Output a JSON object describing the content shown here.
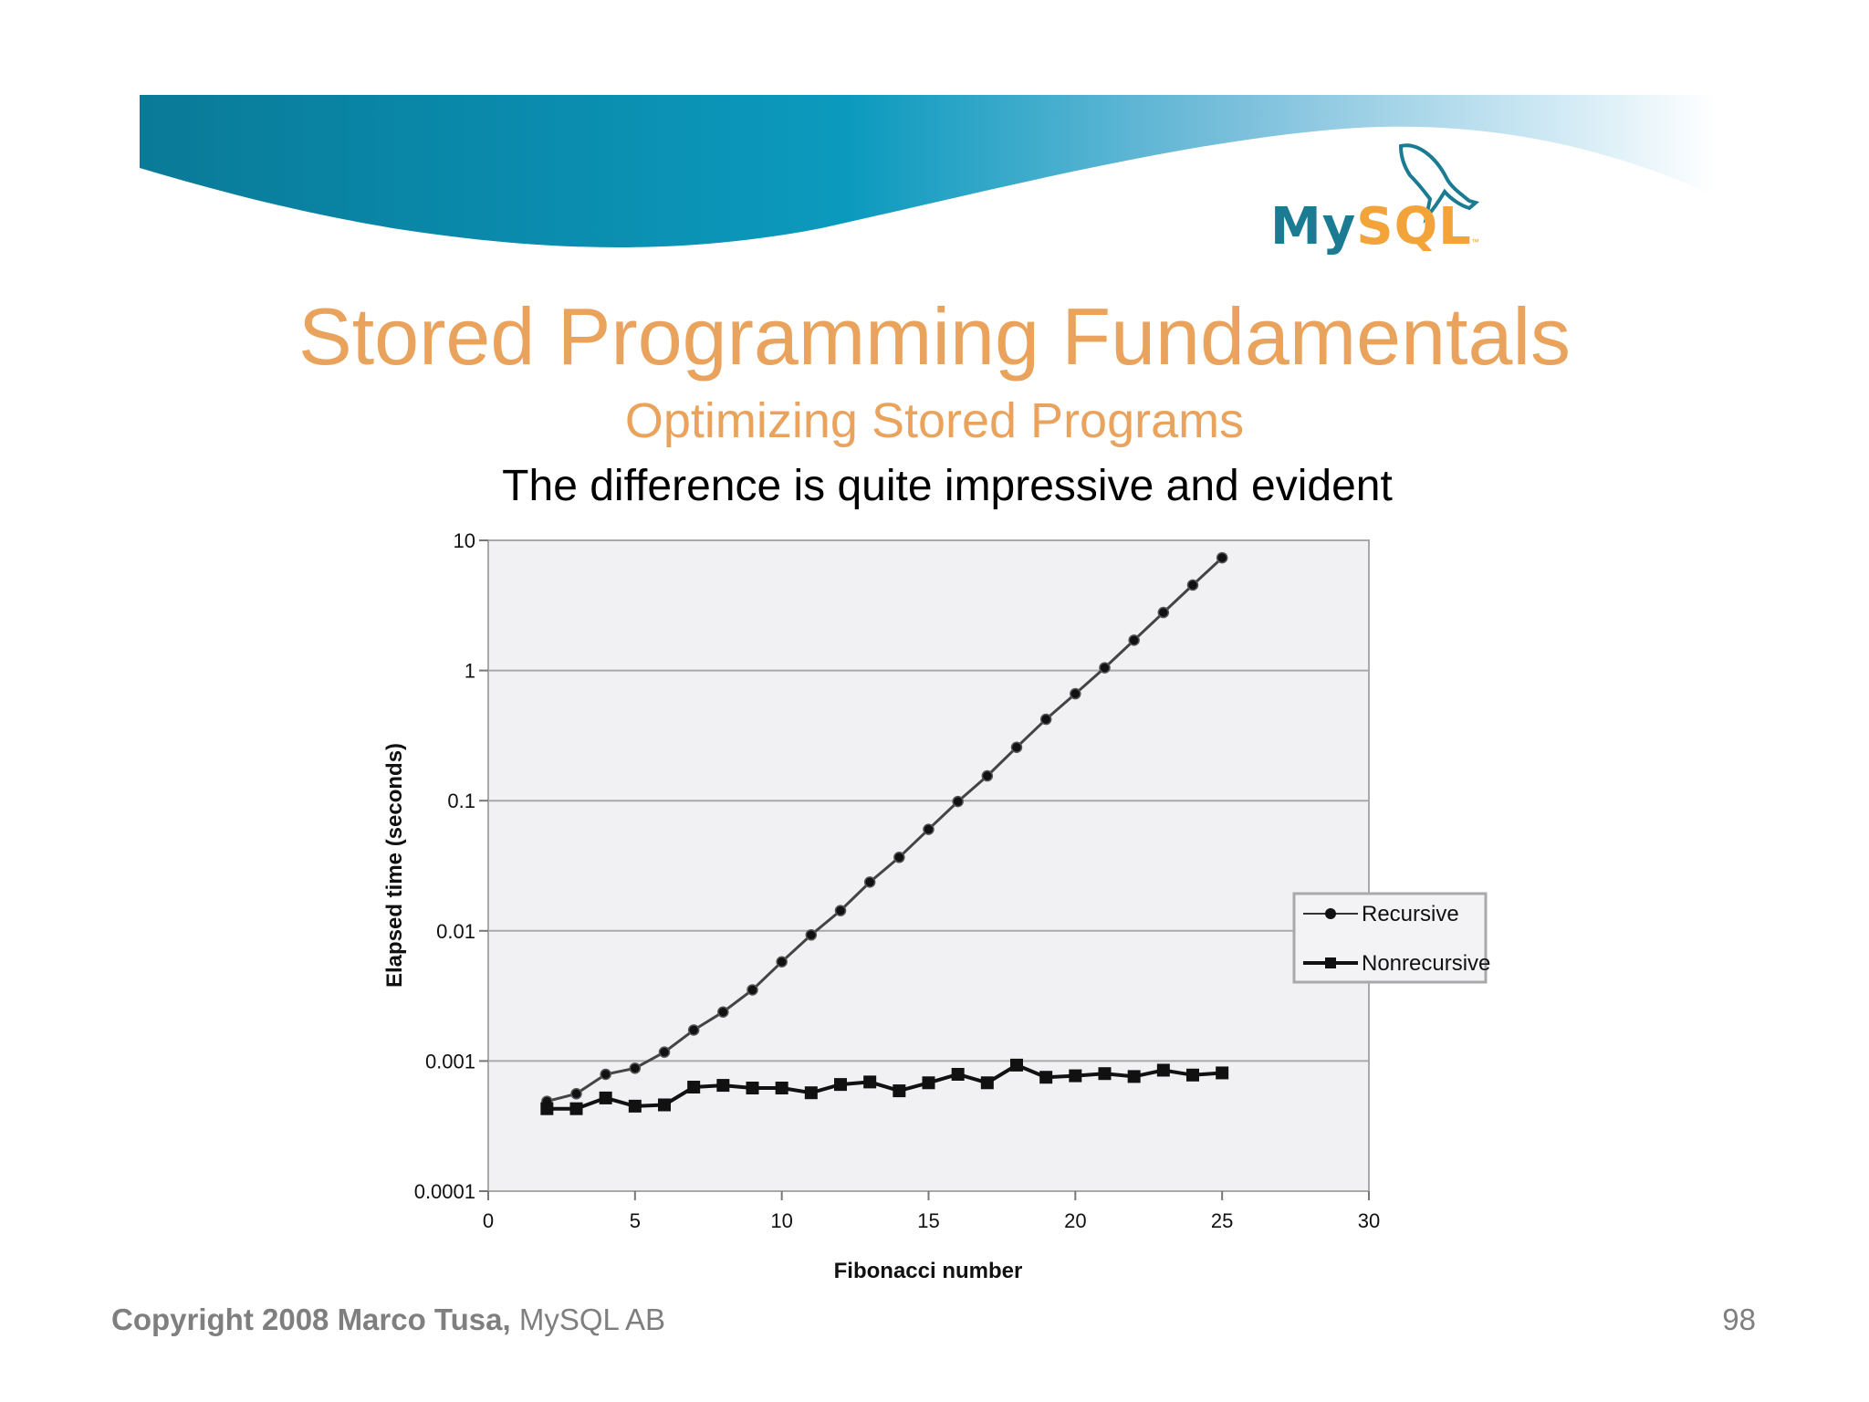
{
  "logo": {
    "text_my": "My",
    "text_sql": "SQL",
    "tm": "™"
  },
  "slide": {
    "title": "Stored Programming Fundamentals",
    "subtitle": "Optimizing Stored Programs",
    "caption": "The difference is quite impressive and evident"
  },
  "footer": {
    "copyright": "Copyright 2008 Marco Tusa,",
    "company": " MySQL AB",
    "page": "98"
  },
  "colors": {
    "title": "#eaa35c",
    "banner_dark": "#0a7a98",
    "banner_light": "#d9eef7",
    "plot_bg": "#f1f0f3",
    "series": "#111111"
  },
  "chart_data": {
    "type": "line",
    "xlabel": "Fibonacci number",
    "ylabel": "Elapsed time (seconds)",
    "xlim": [
      0,
      30
    ],
    "ylim": [
      0.0001,
      10
    ],
    "yscale": "log",
    "grid": true,
    "legend": "right",
    "x_ticks": [
      "0",
      "5",
      "10",
      "15",
      "20",
      "25",
      "30"
    ],
    "y_ticks": [
      "10",
      "1",
      "0.1",
      "0.01",
      "0.001",
      "0.0001"
    ],
    "x": [
      2,
      3,
      4,
      5,
      6,
      7,
      8,
      9,
      10,
      11,
      12,
      13,
      14,
      15,
      16,
      17,
      18,
      19,
      20,
      21,
      22,
      23,
      24,
      25
    ],
    "series": [
      {
        "name": "Recursive",
        "marker": "circle",
        "values": [
          0.00049,
          0.00056,
          0.00079,
          0.00088,
          0.00117,
          0.00173,
          0.00238,
          0.00352,
          0.00578,
          0.0093,
          0.0143,
          0.0237,
          0.0367,
          0.0602,
          0.0985,
          0.155,
          0.257,
          0.422,
          0.663,
          1.05,
          1.71,
          2.79,
          4.54,
          7.35
        ]
      },
      {
        "name": "Nonrecursive",
        "marker": "square",
        "values": [
          0.00043,
          0.00043,
          0.00052,
          0.00045,
          0.00046,
          0.00063,
          0.00065,
          0.00062,
          0.00062,
          0.00057,
          0.00066,
          0.00069,
          0.00059,
          0.00068,
          0.00079,
          0.00068,
          0.00093,
          0.00075,
          0.00077,
          0.0008,
          0.00076,
          0.00085,
          0.00078,
          0.00081
        ]
      }
    ]
  }
}
